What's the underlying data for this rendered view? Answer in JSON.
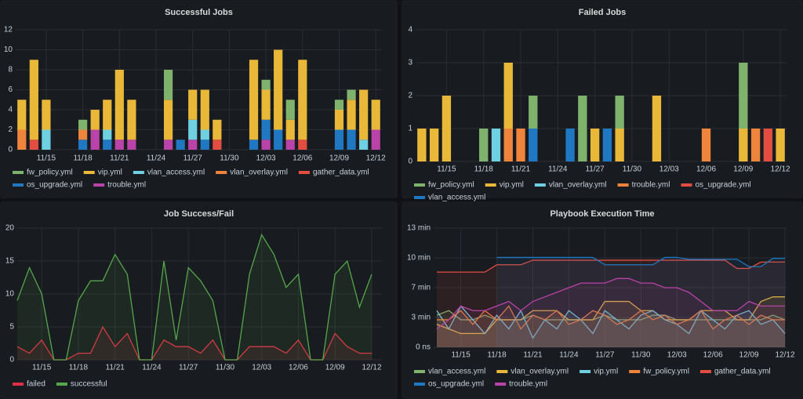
{
  "chart_data": [
    {
      "type": "bar",
      "title": "Successful Jobs",
      "stacked": true,
      "grid": true,
      "legend": "bottom",
      "categories": [
        null,
        null,
        "11/15",
        null,
        null,
        "11/18",
        null,
        null,
        "11/21",
        null,
        null,
        "11/24",
        null,
        null,
        "11/27",
        null,
        null,
        "11/30",
        null,
        null,
        "12/03",
        null,
        null,
        "12/06",
        null,
        null,
        "12/09",
        null,
        null,
        "12/12"
      ],
      "ylim": [
        0,
        12
      ],
      "yticks": [
        0,
        2,
        4,
        6,
        8,
        10,
        12
      ],
      "series": [
        {
          "name": "fw_policy.yml",
          "color": "#7eb26d",
          "values": [
            0,
            0,
            0,
            0,
            0,
            1,
            0,
            0,
            0,
            0,
            0,
            0,
            3,
            0,
            0,
            0,
            0,
            0,
            0,
            0,
            1,
            0,
            2,
            0,
            0,
            0,
            1,
            1,
            0,
            0
          ]
        },
        {
          "name": "vip.yml",
          "color": "#eab839",
          "values": [
            3,
            8,
            3,
            0,
            0,
            0,
            2,
            3,
            7,
            4,
            0,
            0,
            4,
            0,
            3,
            4,
            2,
            0,
            0,
            8,
            3,
            8,
            2,
            8,
            0,
            0,
            2,
            3,
            5,
            3
          ]
        },
        {
          "name": "vlan_access.yml",
          "color": "#6ed0e0",
          "values": [
            0,
            0,
            2,
            0,
            0,
            0,
            0,
            1,
            0,
            0,
            0,
            0,
            0,
            0,
            2,
            1,
            0,
            0,
            0,
            0,
            0,
            0,
            0,
            0,
            0,
            0,
            0,
            0,
            1,
            0
          ]
        },
        {
          "name": "vlan_overlay.yml",
          "color": "#ef843c",
          "values": [
            2,
            0,
            0,
            0,
            0,
            1,
            0,
            0,
            0,
            0,
            0,
            0,
            0,
            0,
            0,
            0,
            0,
            0,
            0,
            0,
            0,
            0,
            0,
            0,
            0,
            0,
            0,
            0,
            0,
            0
          ]
        },
        {
          "name": "gather_data.yml",
          "color": "#e24d42",
          "values": [
            0,
            1,
            0,
            0,
            0,
            0,
            0,
            0,
            0,
            0,
            0,
            0,
            0,
            0,
            0,
            0,
            1,
            0,
            0,
            0,
            0,
            0,
            0,
            1,
            0,
            0,
            0,
            0,
            0,
            0
          ]
        },
        {
          "name": "os_upgrade.yml",
          "color": "#1f78c1",
          "values": [
            0,
            0,
            0,
            0,
            0,
            1,
            0,
            1,
            0,
            0,
            0,
            0,
            0,
            1,
            0,
            1,
            0,
            0,
            0,
            1,
            2,
            2,
            0,
            0,
            0,
            0,
            2,
            2,
            0,
            0
          ]
        },
        {
          "name": "trouble.yml",
          "color": "#ba43a9",
          "values": [
            0,
            0,
            0,
            0,
            0,
            0,
            2,
            0,
            1,
            1,
            0,
            0,
            1,
            0,
            1,
            0,
            0,
            0,
            0,
            0,
            1,
            0,
            1,
            0,
            0,
            0,
            0,
            0,
            0,
            2
          ]
        }
      ]
    },
    {
      "type": "bar",
      "title": "Failed Jobs",
      "stacked": true,
      "grid": true,
      "legend": "bottom",
      "categories": [
        null,
        null,
        "11/15",
        null,
        null,
        "11/18",
        null,
        null,
        "11/21",
        null,
        null,
        "11/24",
        null,
        null,
        "11/27",
        null,
        null,
        "11/30",
        null,
        null,
        "12/03",
        null,
        null,
        "12/06",
        null,
        null,
        "12/09",
        null,
        null,
        "12/12"
      ],
      "ylim": [
        0,
        4
      ],
      "yticks": [
        0,
        1,
        2,
        3,
        4
      ],
      "series": [
        {
          "name": "fw_policy.yml",
          "color": "#7eb26d",
          "values": [
            0,
            0,
            0,
            0,
            0,
            1,
            0,
            0,
            0,
            1,
            0,
            0,
            0,
            2,
            0,
            0,
            1,
            0,
            0,
            0,
            0,
            0,
            0,
            0,
            0,
            0,
            2,
            0,
            0,
            0
          ]
        },
        {
          "name": "vip.yml",
          "color": "#eab839",
          "values": [
            1,
            1,
            2,
            0,
            0,
            0,
            0,
            2,
            0,
            0,
            0,
            0,
            0,
            0,
            1,
            0,
            1,
            0,
            0,
            2,
            0,
            0,
            0,
            0,
            0,
            0,
            1,
            0,
            0,
            1
          ]
        },
        {
          "name": "vlan_overlay.yml",
          "color": "#6ed0e0",
          "values": [
            0,
            0,
            0,
            0,
            0,
            0,
            1,
            0,
            0,
            0,
            0,
            0,
            0,
            0,
            0,
            0,
            0,
            0,
            0,
            0,
            0,
            0,
            0,
            0,
            0,
            0,
            0,
            0,
            0,
            0
          ]
        },
        {
          "name": "trouble.yml",
          "color": "#ef843c",
          "values": [
            0,
            0,
            0,
            0,
            0,
            0,
            0,
            1,
            1,
            0,
            0,
            0,
            0,
            0,
            0,
            0,
            0,
            0,
            0,
            0,
            0,
            0,
            0,
            1,
            0,
            0,
            0,
            1,
            0,
            0
          ]
        },
        {
          "name": "os_upgrade.yml",
          "color": "#e24d42",
          "values": [
            0,
            0,
            0,
            0,
            0,
            0,
            0,
            0,
            0,
            0,
            0,
            0,
            0,
            0,
            0,
            0,
            0,
            0,
            0,
            0,
            0,
            0,
            0,
            0,
            0,
            0,
            0,
            0,
            1,
            0
          ]
        },
        {
          "name": "vlan_access.yml",
          "color": "#1f78c1",
          "values": [
            0,
            0,
            0,
            0,
            0,
            0,
            0,
            0,
            0,
            1,
            0,
            0,
            1,
            0,
            0,
            1,
            0,
            0,
            0,
            0,
            0,
            0,
            0,
            0,
            0,
            0,
            0,
            0,
            0,
            0
          ]
        }
      ]
    },
    {
      "type": "line",
      "title": "Job Success/Fail",
      "grid": true,
      "legend": "bottom",
      "categories": [
        null,
        null,
        "11/15",
        null,
        null,
        "11/18",
        null,
        null,
        "11/21",
        null,
        null,
        "11/24",
        null,
        null,
        "11/27",
        null,
        null,
        "11/30",
        null,
        null,
        "12/03",
        null,
        null,
        "12/06",
        null,
        null,
        "12/09",
        null,
        null,
        "12/12"
      ],
      "ylim": [
        0,
        20
      ],
      "yticks": [
        0,
        5,
        10,
        15,
        20
      ],
      "series": [
        {
          "name": "failed",
          "color": "#e02f44",
          "values": [
            2,
            1,
            3,
            0,
            0,
            1,
            1,
            5,
            2,
            4,
            0,
            0,
            3,
            2,
            2,
            1,
            3,
            0,
            0,
            2,
            2,
            2,
            1,
            3,
            0,
            0,
            4,
            2,
            1,
            1
          ]
        },
        {
          "name": "successful",
          "color": "#56a64b",
          "values": [
            9,
            14,
            10,
            0,
            0,
            9,
            12,
            12,
            16,
            13,
            0,
            0,
            15,
            3,
            14,
            12,
            9,
            0,
            0,
            13,
            19,
            16,
            11,
            13,
            0,
            0,
            13,
            15,
            8,
            13
          ]
        }
      ]
    },
    {
      "type": "line",
      "title": "Playbook Execution Time",
      "grid": true,
      "legend": "bottom",
      "categories": [
        null,
        null,
        "11/15",
        null,
        null,
        "11/18",
        null,
        null,
        "11/21",
        null,
        null,
        "11/24",
        null,
        null,
        "11/27",
        null,
        null,
        "11/30",
        null,
        null,
        "12/03",
        null,
        null,
        "12/06",
        null,
        null,
        "12/09",
        null,
        null,
        "12/12"
      ],
      "ylim": [
        0,
        13
      ],
      "yticks": [
        {
          "value": 0,
          "label": "0 ns"
        },
        {
          "value": 3.25,
          "label": "3 min"
        },
        {
          "value": 6.5,
          "label": "7 min"
        },
        {
          "value": 9.75,
          "label": "10 min"
        },
        {
          "value": 13,
          "label": "13 min"
        }
      ],
      "series": [
        {
          "name": "vlan_access.yml",
          "color": "#7eb26d",
          "values": [
            3.5,
            4,
            3,
            3,
            3.5,
            3,
            3,
            3,
            3.5,
            3,
            3,
            3,
            3,
            3,
            3.5,
            3,
            3,
            3,
            3.5,
            3.5,
            3,
            3,
            3,
            3,
            3,
            3,
            3,
            3,
            3.5,
            3
          ]
        },
        {
          "name": "vlan_overlay.yml",
          "color": "#eab839",
          "values": [
            2.5,
            2,
            1.5,
            1.5,
            1.5,
            3,
            3,
            3,
            4,
            4,
            4,
            3,
            3,
            3,
            5,
            5,
            5,
            4,
            4,
            3,
            3,
            3,
            4,
            4,
            4,
            3,
            3,
            5,
            5.5,
            5.5
          ]
        },
        {
          "name": "vip.yml",
          "color": "#6ed0e0",
          "values": [
            4,
            2,
            4.5,
            3,
            1.5,
            3.5,
            2,
            4,
            1,
            3,
            2,
            4,
            3,
            1.5,
            4,
            3,
            2,
            3.5,
            4,
            3,
            2.5,
            1.5,
            4,
            3,
            2,
            3.5,
            4,
            2.5,
            3,
            1.5
          ]
        },
        {
          "name": "fw_policy.yml",
          "color": "#ef843c",
          "values": [
            3,
            3,
            4,
            2.5,
            4,
            3,
            4.5,
            2,
            3.5,
            3,
            4,
            2.5,
            3,
            4,
            3.5,
            2.5,
            3,
            4,
            3,
            3.5,
            2.5,
            3,
            4,
            2,
            3,
            3.5,
            2.5,
            3.5,
            3,
            3
          ]
        },
        {
          "name": "gather_data.yml",
          "color": "#e24d42",
          "values": [
            8.2,
            8.2,
            8.2,
            8.2,
            8.2,
            9,
            9,
            9,
            9.5,
            9.5,
            9.5,
            9.5,
            9.5,
            9.5,
            9.5,
            9.5,
            9.5,
            9.5,
            9.5,
            9.5,
            9.5,
            9.5,
            9.5,
            9.5,
            9.5,
            8.6,
            8.6,
            9.3,
            9.3,
            9.3
          ]
        },
        {
          "name": "os_upgrade.yml",
          "color": "#1f78c1",
          "values": [
            null,
            null,
            null,
            null,
            null,
            9.8,
            9.8,
            9.8,
            9.8,
            9.8,
            9.8,
            9.8,
            9.8,
            9.8,
            9,
            9,
            9,
            9,
            9,
            9.8,
            9.8,
            9.6,
            9.6,
            9.6,
            9.6,
            9.6,
            8.8,
            8.8,
            9.7,
            9.7
          ]
        },
        {
          "name": "trouble.yml",
          "color": "#ba43a9",
          "values": [
            2,
            3,
            4.5,
            4,
            4,
            4.5,
            5,
            4,
            5,
            5.5,
            6,
            6.5,
            7,
            7,
            7,
            7.5,
            7.5,
            7,
            7,
            6.5,
            6.5,
            6,
            5,
            4,
            4,
            4,
            5,
            4.5,
            4.5,
            4.5
          ]
        }
      ]
    }
  ]
}
